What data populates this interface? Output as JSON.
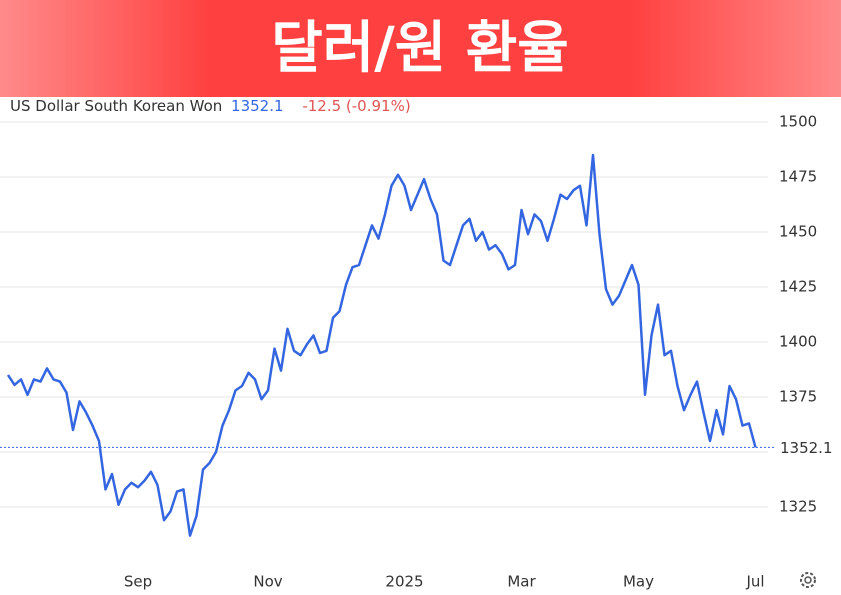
{
  "chart_data": {
    "type": "line",
    "title": "달러/원 환율",
    "change": "-12.5 (-0.91%)",
    "categories": [
      null,
      null,
      null,
      null,
      null,
      null,
      null,
      null,
      null,
      null,
      null,
      null,
      null,
      null,
      null,
      null,
      null,
      null,
      null,
      null,
      "Sep",
      null,
      null,
      null,
      null,
      null,
      null,
      null,
      null,
      null,
      null,
      null,
      null,
      null,
      null,
      null,
      null,
      null,
      null,
      null,
      "Nov",
      null,
      null,
      null,
      null,
      null,
      null,
      null,
      null,
      null,
      null,
      null,
      null,
      null,
      null,
      null,
      null,
      null,
      null,
      null,
      null,
      "2025",
      null,
      null,
      null,
      null,
      null,
      null,
      null,
      null,
      null,
      null,
      null,
      null,
      null,
      null,
      null,
      null,
      null,
      "Mar",
      null,
      null,
      null,
      null,
      null,
      null,
      null,
      null,
      null,
      null,
      null,
      null,
      null,
      null,
      null,
      null,
      null,
      "May",
      null,
      null,
      null,
      null,
      null,
      null,
      null,
      null,
      null,
      null,
      null,
      null,
      null,
      null,
      null,
      null,
      null,
      "Jul"
    ],
    "series": [
      {
        "name": "US Dollar South Korean Won",
        "color": "#3366e0",
        "values": [
          1385,
          1380.5,
          1383,
          1376,
          1383,
          1382,
          1388,
          1383,
          1382,
          1377,
          1360,
          1373,
          1368,
          1362,
          1355,
          1333,
          1340,
          1326,
          1333,
          1336,
          1334,
          1337,
          1341,
          1335,
          1319,
          1323,
          1332,
          1333,
          1312,
          1321,
          1342,
          1345,
          1350,
          1362,
          1369,
          1378,
          1380,
          1386,
          1383,
          1374,
          1378,
          1397,
          1387,
          1406,
          1396,
          1394,
          1399,
          1403,
          1395,
          1396,
          1411,
          1414,
          1426,
          1434,
          1435,
          1444,
          1453,
          1447,
          1458,
          1471,
          1476,
          1471,
          1460,
          1467,
          1474,
          1465,
          1458,
          1437,
          1435,
          1444,
          1453,
          1456,
          1446,
          1450,
          1442,
          1444,
          1440,
          1433,
          1435,
          1460,
          1449,
          1458,
          1455,
          1446,
          1456,
          1467,
          1465,
          1469,
          1471,
          1453,
          1485,
          1449,
          1424,
          1417,
          1421,
          1428,
          1435,
          1426,
          1376,
          1403,
          1417,
          1394,
          1396,
          1380,
          1369,
          1376,
          1382,
          1368,
          1355,
          1369,
          1358,
          1380,
          1374,
          1362,
          1363,
          1352.1
        ]
      }
    ],
    "ylim": [
      1300,
      1510
    ],
    "yticks": [
      1325,
      1350,
      1375,
      1400,
      1425,
      1450,
      1475,
      1500
    ],
    "grid": true
  }
}
